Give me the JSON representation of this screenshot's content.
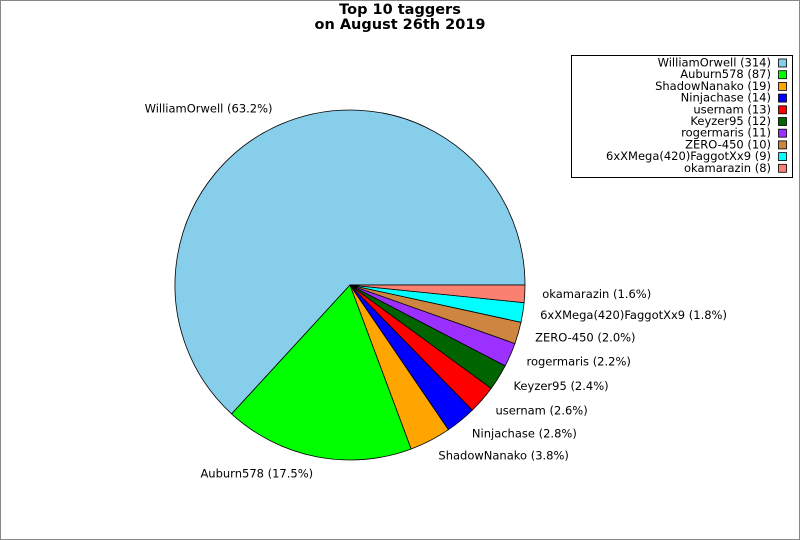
{
  "chart_data": {
    "type": "pie",
    "title": [
      "Top 10 taggers",
      "on August 26th 2019"
    ],
    "categories": [
      "WilliamOrwell",
      "Auburn578",
      "ShadowNanako",
      "Ninjachase",
      "usernam",
      "Keyzer95",
      "rogermaris",
      "ZERO-450",
      "6xXMega(420)FaggotXx9",
      "okamarazin"
    ],
    "values": [
      314,
      87,
      19,
      14,
      13,
      12,
      11,
      10,
      9,
      8
    ],
    "legend_labels": [
      "WilliamOrwell (314)",
      "Auburn578 (87)",
      "ShadowNanako (19)",
      "Ninjachase (14)",
      "usernam (13)",
      "Keyzer95 (12)",
      "rogermaris (11)",
      "ZERO-450 (10)",
      "6xXMega(420)FaggotXx9 (9)",
      "okamarazin (8)"
    ],
    "slice_labels": [
      "WilliamOrwell (63.2%)",
      "Auburn578 (17.5%)",
      "ShadowNanako (3.8%)",
      "Ninjachase (2.8%)",
      "usernam (2.6%)",
      "Keyzer95 (2.4%)",
      "rogermaris (2.2%)",
      "ZERO-450 (2.0%)",
      "6xXMega(420)FaggotXx9 (1.8%)",
      "okamarazin (1.6%)"
    ],
    "colors": [
      "#87ceeb",
      "#00ff00",
      "#ffa500",
      "#0000ff",
      "#ff0000",
      "#006400",
      "#9b30ff",
      "#cd853f",
      "#00ffff",
      "#fa8072"
    ],
    "legend": "upper right"
  }
}
